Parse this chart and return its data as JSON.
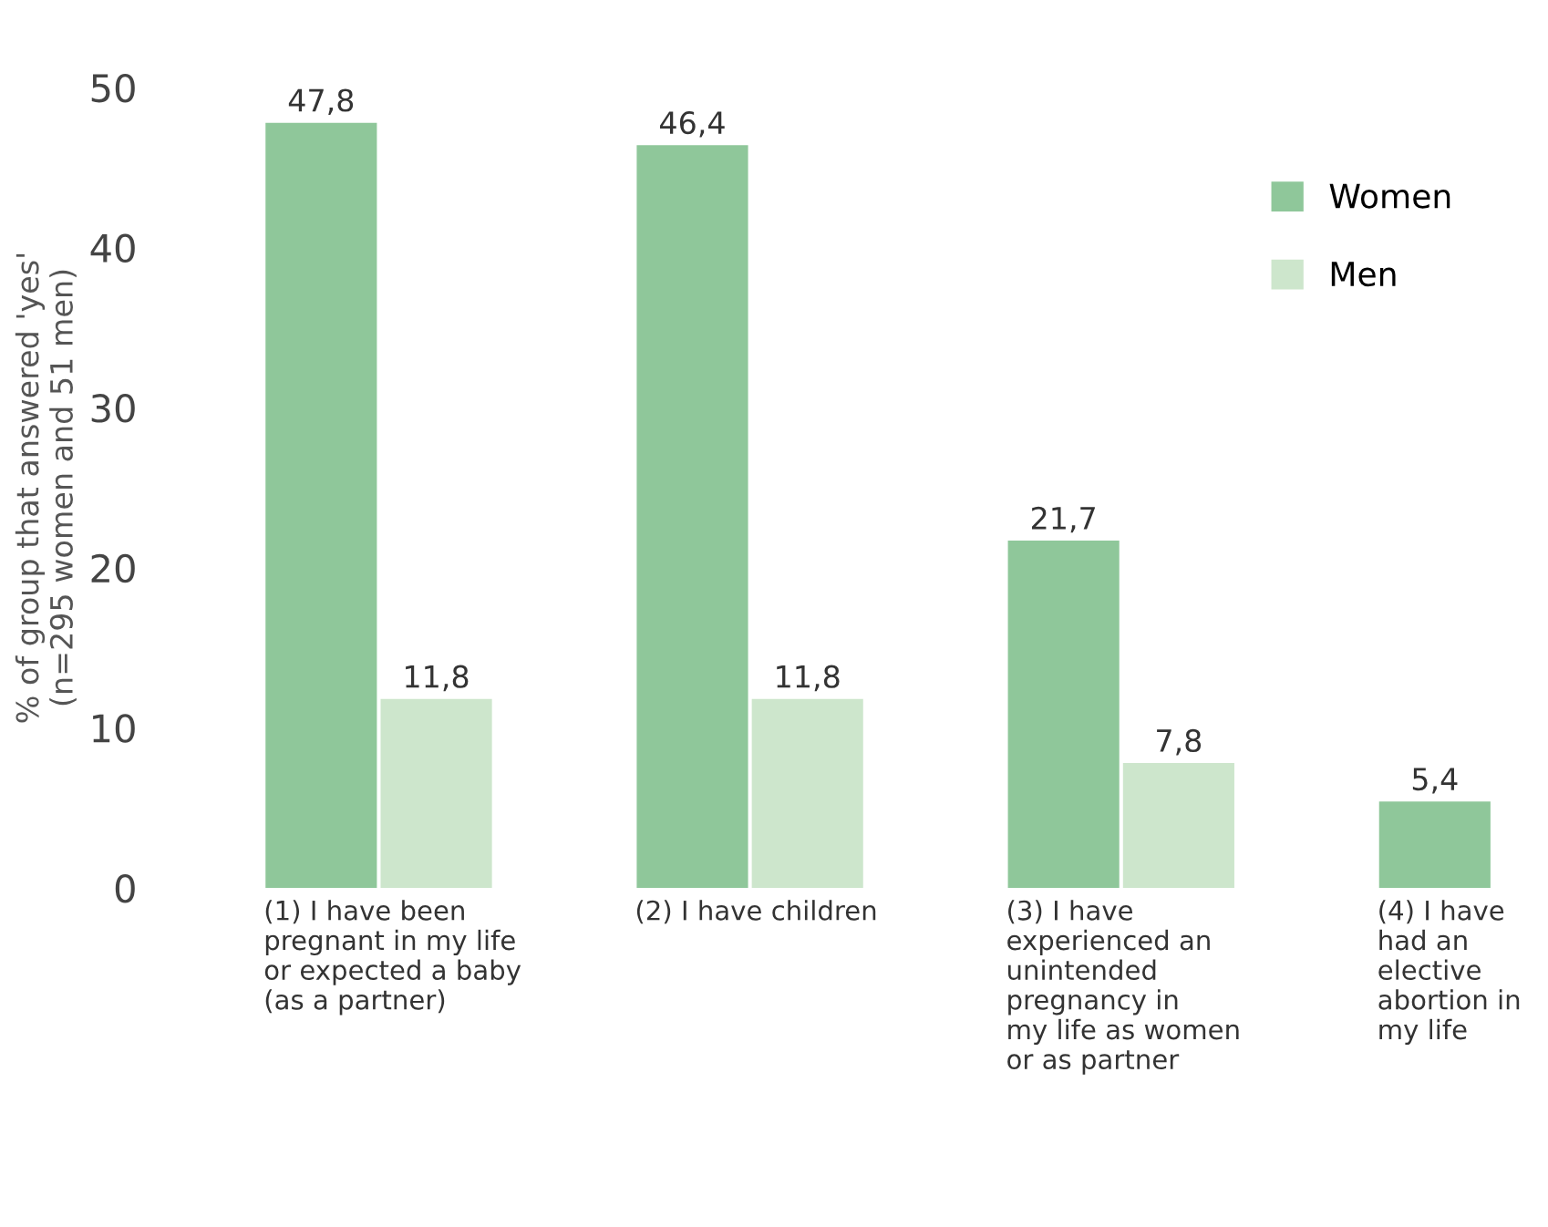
{
  "chart_data": {
    "type": "bar",
    "ylabel": "% of group that answered 'yes'\n(n=295 women and 51 men)",
    "categories": [
      "(1) I have been\npregnant in my life\nor expected a baby\n(as a partner)",
      "(2) I have children",
      "(3) I have\nexperienced an\nunintended\npregnancy in\nmy life as women\nor as partner",
      "(4) I have\nhad an\nelective\nabortion in\nmy life"
    ],
    "series": [
      {
        "name": "Women",
        "color": "#8fc79a",
        "values": [
          47.8,
          46.4,
          21.7,
          5.4
        ],
        "value_labels": [
          "47,8",
          "46,4",
          "21,7",
          "5,4"
        ]
      },
      {
        "name": "Men",
        "color": "#cde6cc",
        "values": [
          11.8,
          11.8,
          7.8,
          null
        ],
        "value_labels": [
          "11,8",
          "11,8",
          "7,8",
          null
        ]
      }
    ],
    "ylim": [
      0,
      50
    ],
    "yticks": [
      0,
      10,
      20,
      30,
      40,
      50
    ],
    "grid": false,
    "legend": "top right"
  }
}
